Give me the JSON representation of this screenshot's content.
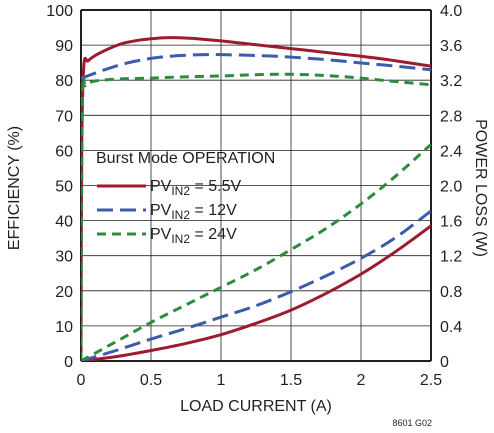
{
  "chart_data": {
    "type": "line",
    "xlabel": "LOAD CURRENT (A)",
    "ylabel": "EFFICIENCY (%)",
    "y2label": "POWER LOSS (W)",
    "figure_id": "8601 G02",
    "xlim": [
      0,
      2.5
    ],
    "ylim": [
      0,
      100
    ],
    "y2lim": [
      0,
      4.0
    ],
    "x_ticks": [
      "0",
      "0.5",
      "1",
      "1.5",
      "2",
      "2.5"
    ],
    "y_ticks": [
      "0",
      "10",
      "20",
      "30",
      "40",
      "50",
      "60",
      "70",
      "80",
      "90",
      "100"
    ],
    "y2_ticks": [
      "0",
      "0.4",
      "0.8",
      "1.2",
      "1.6",
      "2.0",
      "2.4",
      "2.8",
      "3.2",
      "3.6",
      "4.0"
    ],
    "grid": true,
    "legend": {
      "title": "Burst Mode OPERATION",
      "entries": [
        {
          "prefix": "PV",
          "sub": "IN2",
          "suffix": " = 5.5V"
        },
        {
          "prefix": "PV",
          "sub": "IN2",
          "suffix": " = 12V"
        },
        {
          "prefix": "PV",
          "sub": "IN2",
          "suffix": " = 24V"
        }
      ]
    },
    "series": [
      {
        "name": "PVIN2 = 5.5V",
        "axis": "left",
        "kind": "efficiency",
        "color": "#9b1b30",
        "dash": "",
        "x": [
          0.0,
          0.005,
          0.02,
          0.05,
          0.1,
          0.2,
          0.3,
          0.4,
          0.5,
          0.6,
          0.7,
          0.8,
          1.0,
          1.2,
          1.5,
          1.8,
          2.0,
          2.2,
          2.5
        ],
        "y": [
          0,
          60,
          84,
          85.5,
          87,
          89,
          90.5,
          91.3,
          91.8,
          92.1,
          92.1,
          91.9,
          91.2,
          90.3,
          89,
          87.7,
          86.8,
          85.8,
          84
        ]
      },
      {
        "name": "PVIN2 = 12V",
        "axis": "left",
        "kind": "efficiency",
        "color": "#3b5bab",
        "dash": "16 7",
        "x": [
          0.0,
          0.1,
          0.2,
          0.3,
          0.4,
          0.5,
          0.6,
          0.7,
          0.8,
          0.9,
          1.0,
          1.2,
          1.4,
          1.6,
          1.8,
          2.0,
          2.2,
          2.5
        ],
        "y": [
          80.5,
          82,
          83.4,
          84.6,
          85.5,
          86.2,
          86.7,
          87.0,
          87.2,
          87.3,
          87.3,
          87.1,
          86.8,
          86.3,
          85.7,
          84.9,
          84.2,
          83
        ]
      },
      {
        "name": "PVIN2 = 24V",
        "axis": "left",
        "kind": "efficiency",
        "color": "#2e8b3e",
        "dash": "9 6",
        "x": [
          0.0,
          0.01,
          0.03,
          0.07,
          0.15,
          0.3,
          0.5,
          0.7,
          1.0,
          1.2,
          1.4,
          1.6,
          1.8,
          2.0,
          2.2,
          2.5
        ],
        "y": [
          0,
          74,
          78.5,
          79.5,
          80,
          80.4,
          80.6,
          80.9,
          81.2,
          81.5,
          81.7,
          81.6,
          81.2,
          80.6,
          79.8,
          78.7
        ]
      },
      {
        "name": "PVIN2 = 5.5V",
        "axis": "right",
        "kind": "power_loss",
        "color": "#9b1b30",
        "dash": "",
        "x": [
          0.0,
          0.25,
          0.5,
          0.75,
          1.0,
          1.25,
          1.5,
          1.75,
          2.0,
          2.25,
          2.5
        ],
        "y": [
          0,
          0.05,
          0.12,
          0.2,
          0.3,
          0.43,
          0.58,
          0.77,
          0.99,
          1.25,
          1.54
        ]
      },
      {
        "name": "PVIN2 = 12V",
        "axis": "right",
        "kind": "power_loss",
        "color": "#3b5bab",
        "dash": "16 7",
        "x": [
          0.0,
          0.25,
          0.5,
          0.75,
          1.0,
          1.25,
          1.5,
          1.75,
          2.0,
          2.25,
          2.5
        ],
        "y": [
          0,
          0.12,
          0.25,
          0.37,
          0.5,
          0.63,
          0.79,
          0.97,
          1.17,
          1.41,
          1.71
        ]
      },
      {
        "name": "PVIN2 = 24V",
        "axis": "right",
        "kind": "power_loss",
        "color": "#2e8b3e",
        "dash": "9 6",
        "x": [
          0.0,
          0.25,
          0.5,
          0.75,
          1.0,
          1.25,
          1.5,
          1.75,
          2.0,
          2.25,
          2.5
        ],
        "y": [
          0,
          0.22,
          0.44,
          0.64,
          0.84,
          1.04,
          1.27,
          1.51,
          1.79,
          2.11,
          2.47
        ]
      }
    ]
  }
}
